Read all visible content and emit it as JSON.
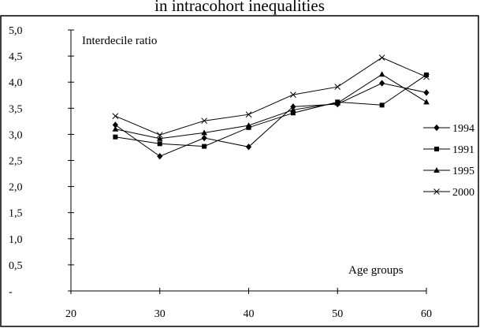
{
  "chart_data": {
    "type": "line",
    "title": "in intracohort inequalities",
    "ylabel": "Interdecile ratio",
    "xlabel": "Age groups",
    "x": [
      25,
      30,
      35,
      40,
      45,
      50,
      55,
      60
    ],
    "xlim": [
      20,
      60
    ],
    "ylim": [
      0,
      5
    ],
    "x_ticks": [
      "20",
      "30",
      "40",
      "50",
      "60"
    ],
    "y_ticks": [
      "-",
      "0,5",
      "1,0",
      "1,5",
      "2,0",
      "2,5",
      "3,0",
      "3,5",
      "4,0",
      "4,5",
      "5,0"
    ],
    "grid": false,
    "legend_position": "right",
    "series": [
      {
        "name": "1994",
        "marker": "diamond",
        "values": [
          3.18,
          2.58,
          2.93,
          2.76,
          3.53,
          3.58,
          3.98,
          3.8
        ]
      },
      {
        "name": "1991",
        "marker": "square",
        "values": [
          2.95,
          2.82,
          2.77,
          3.13,
          3.41,
          3.62,
          3.56,
          4.14
        ]
      },
      {
        "name": "1995",
        "marker": "triangle",
        "values": [
          3.1,
          2.92,
          3.03,
          3.17,
          3.47,
          3.6,
          4.15,
          3.62
        ]
      },
      {
        "name": "2000",
        "marker": "x",
        "values": [
          3.35,
          2.99,
          3.26,
          3.38,
          3.76,
          3.91,
          4.47,
          4.1
        ]
      }
    ]
  }
}
